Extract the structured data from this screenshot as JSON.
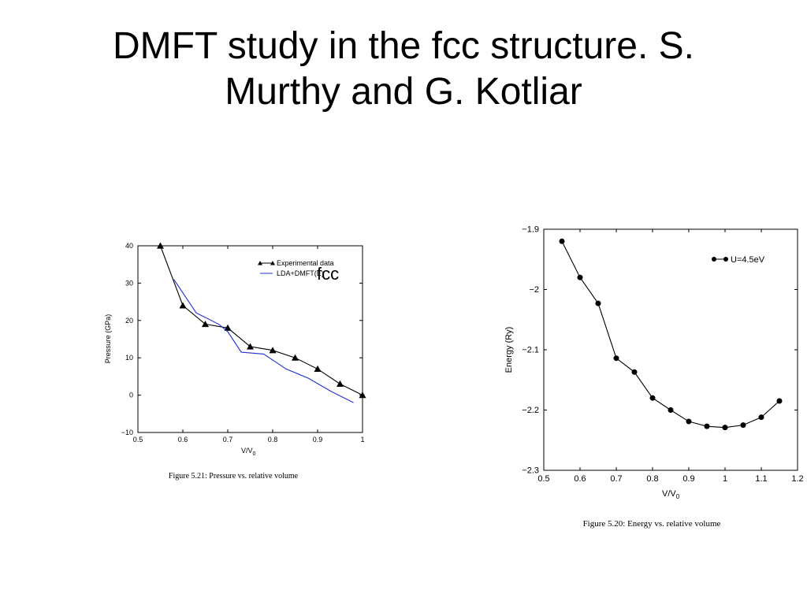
{
  "slide": {
    "title_line1": "DMFT study in the fcc structure. S.",
    "title_line2": "Murthy and G. Kotliar",
    "overlay_label": "fcc"
  },
  "chart_data": [
    {
      "type": "line",
      "ylabel": "Pressure (GPa)",
      "xlabel_main": "V/V",
      "xlabel_sub": "0",
      "caption": "Figure 5.21: Pressure vs. relative volume",
      "xlim": [
        0.5,
        1
      ],
      "ylim": [
        -10,
        40
      ],
      "x_ticks": [
        0.5,
        0.6,
        0.7,
        0.8,
        0.9,
        1
      ],
      "y_ticks": [
        -10,
        0,
        10,
        20,
        30,
        40
      ],
      "legend_position": "top-right",
      "series": [
        {
          "name": "Experimental data",
          "color": "#000000",
          "marker": "triangle",
          "x": [
            0.55,
            0.6,
            0.65,
            0.7,
            0.75,
            0.8,
            0.85,
            0.9,
            0.95,
            1.0
          ],
          "y": [
            40,
            24,
            19,
            18,
            13,
            12,
            10,
            7,
            3,
            0
          ]
        },
        {
          "name": "LDA+DMFT(E)",
          "color": "#1f2fd0",
          "marker": "none",
          "x": [
            0.58,
            0.63,
            0.68,
            0.7,
            0.73,
            0.78,
            0.83,
            0.88,
            0.93,
            0.98
          ],
          "y": [
            31,
            22,
            19,
            17,
            11.5,
            11,
            7,
            4.5,
            1,
            -2
          ]
        }
      ]
    },
    {
      "type": "line",
      "ylabel": "Energy (Ry)",
      "xlabel_main": "V/V",
      "xlabel_sub": "0",
      "caption": "Figure 5.20: Energy vs. relative volume",
      "xlim": [
        0.5,
        1.2
      ],
      "ylim": [
        -2.3,
        -1.9
      ],
      "x_ticks": [
        0.5,
        0.6,
        0.7,
        0.8,
        0.9,
        1,
        1.1,
        1.2
      ],
      "y_ticks": [
        -2.3,
        -2.2,
        -2.1,
        -2,
        -1.9
      ],
      "legend_position": "top-right",
      "series": [
        {
          "name": "U=4.5eV",
          "color": "#000000",
          "marker": "circle",
          "x": [
            0.55,
            0.6,
            0.65,
            0.7,
            0.75,
            0.8,
            0.85,
            0.9,
            0.95,
            1.0,
            1.05,
            1.1,
            1.15
          ],
          "y": [
            -1.92,
            -1.98,
            -2.023,
            -2.114,
            -2.137,
            -2.18,
            -2.2,
            -2.219,
            -2.227,
            -2.229,
            -2.225,
            -2.212,
            -2.185
          ]
        }
      ]
    }
  ]
}
